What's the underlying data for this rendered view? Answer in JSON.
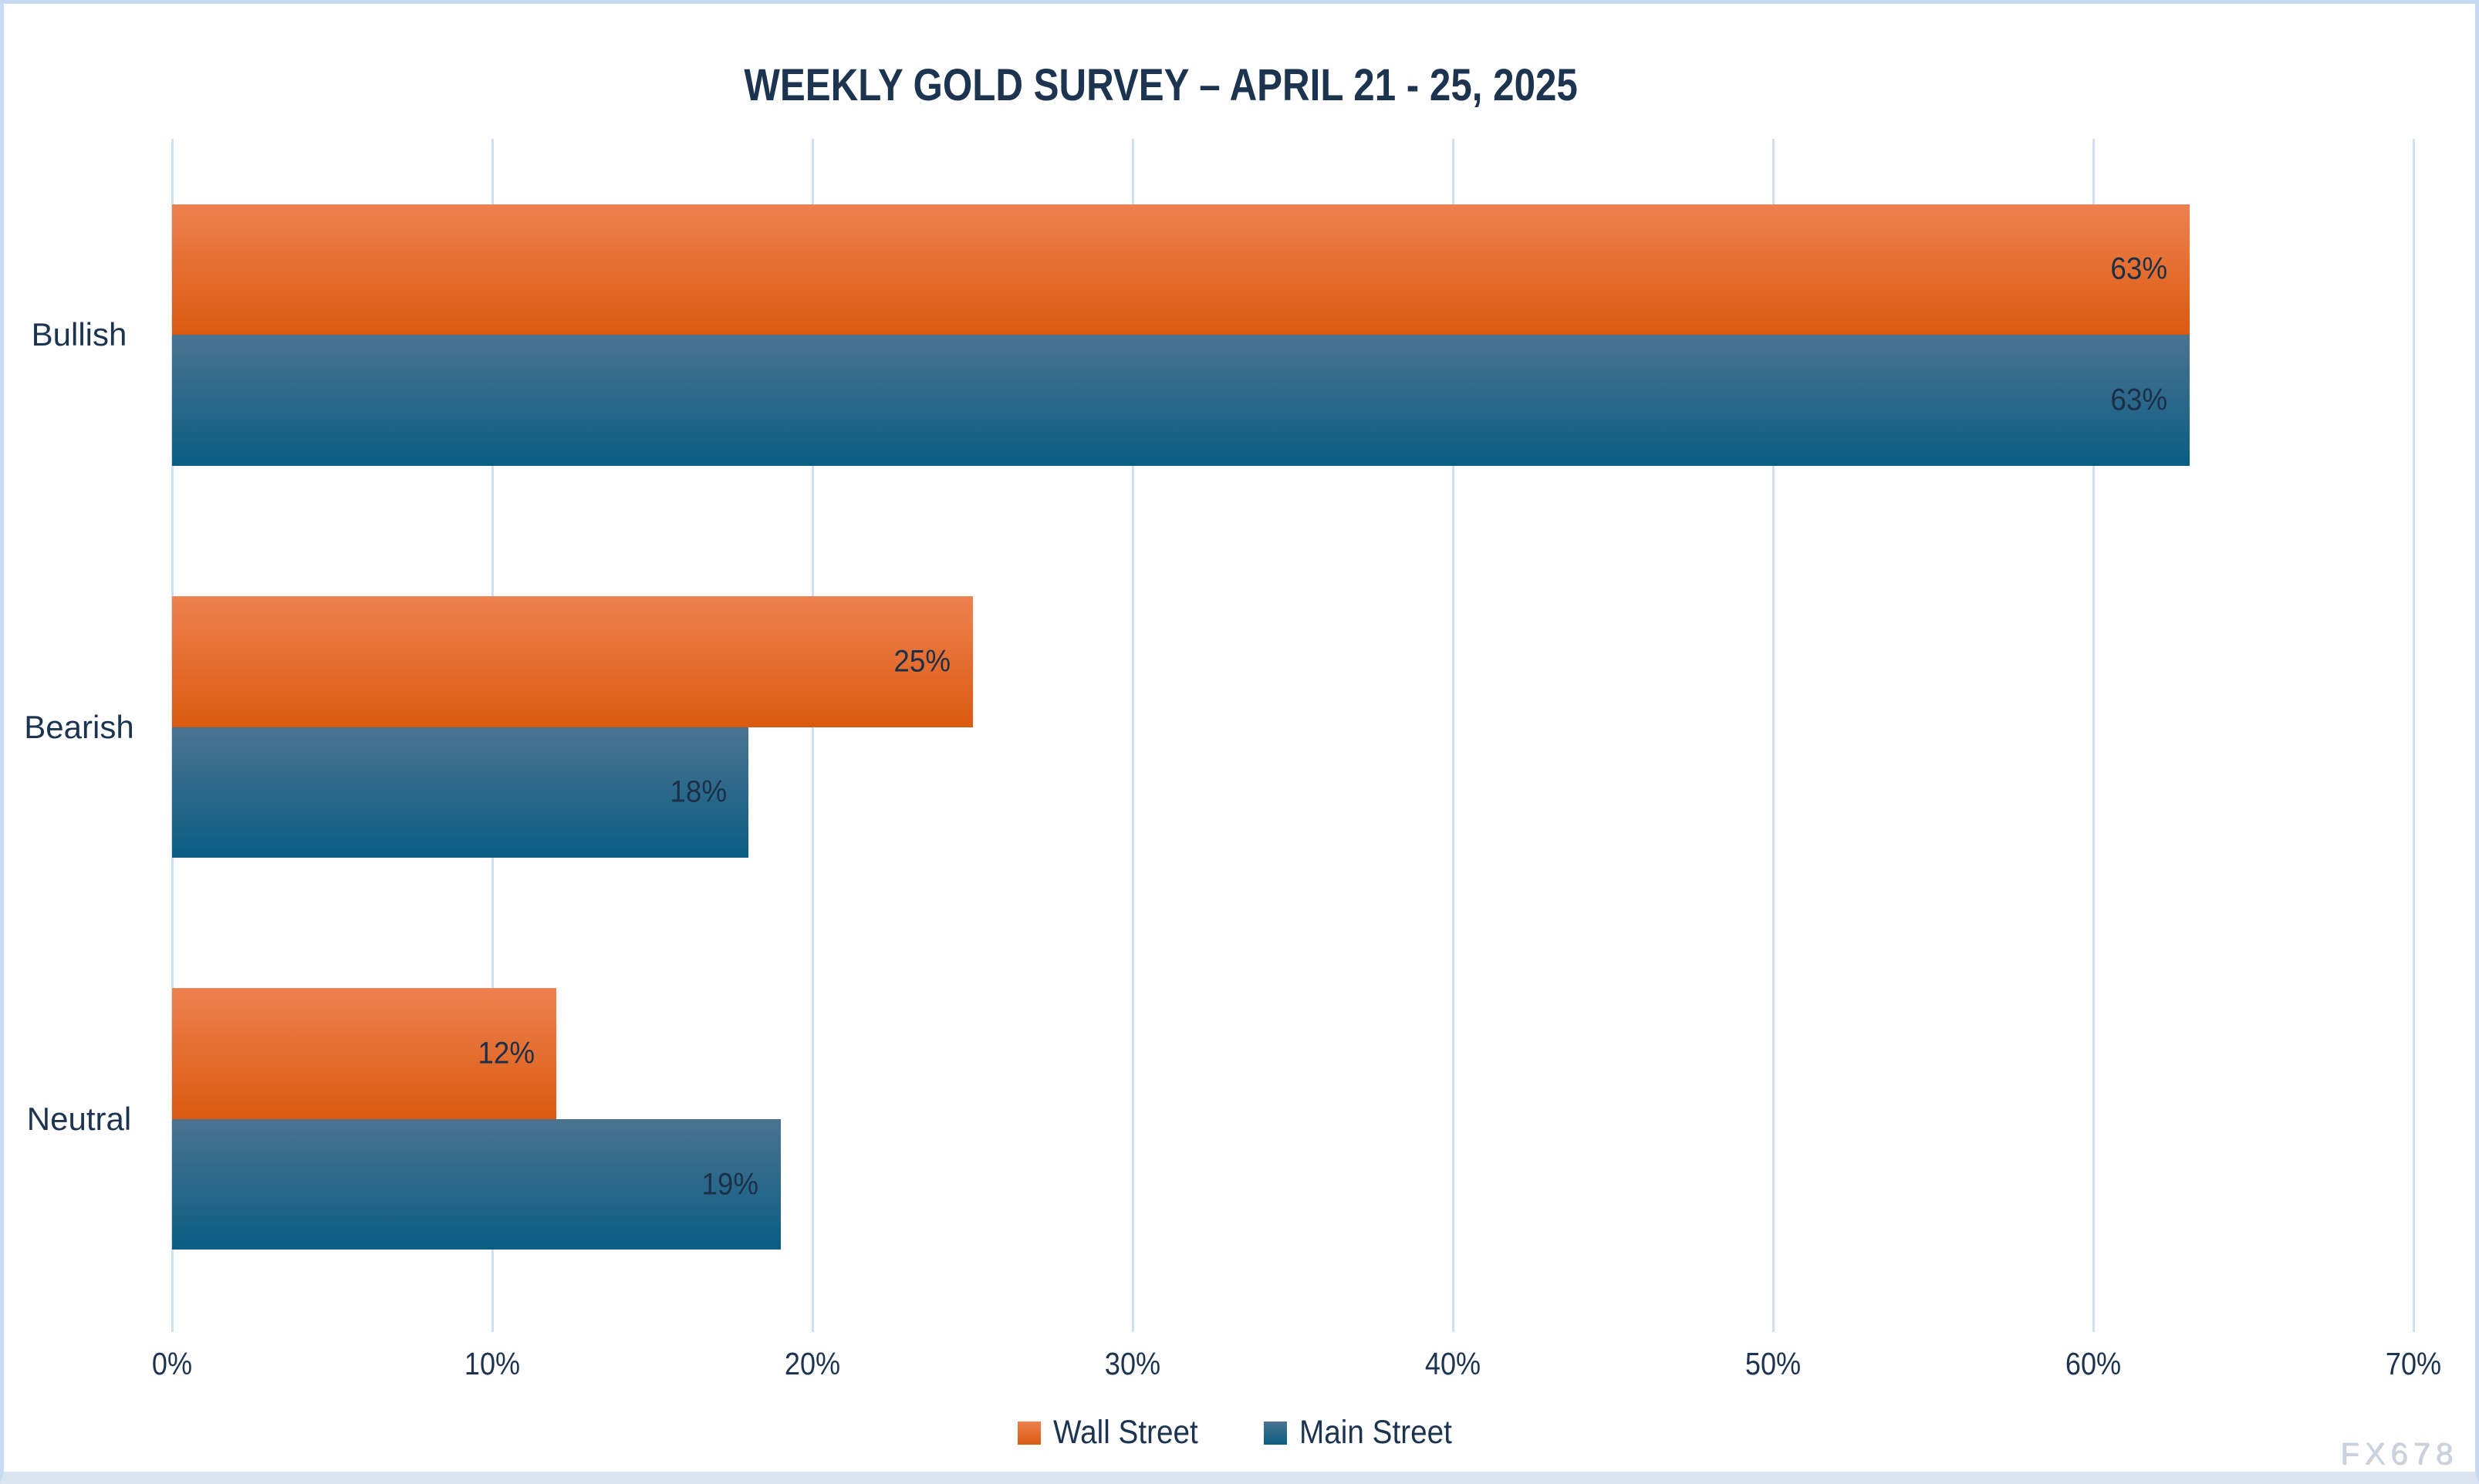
{
  "chart_data": {
    "type": "bar",
    "orientation": "horizontal",
    "title": "WEEKLY GOLD SURVEY – APRIL 21 - 25, 2025",
    "categories": [
      "Bullish",
      "Bearish",
      "Neutral"
    ],
    "series": [
      {
        "name": "Wall Street",
        "values": [
          63,
          25,
          12
        ],
        "labels": [
          "63%",
          "25%",
          "12%"
        ],
        "color_top": "#ee8150",
        "color_bottom": "#db5a10"
      },
      {
        "name": "Main Street",
        "values": [
          63,
          18,
          19
        ],
        "labels": [
          "63%",
          "18%",
          "19%"
        ],
        "color_top": "#4b7391",
        "color_bottom": "#0a5d83"
      }
    ],
    "x_ticks": [
      "0%",
      "10%",
      "20%",
      "30%",
      "40%",
      "50%",
      "60%",
      "70%"
    ],
    "xlim": [
      0,
      70
    ],
    "grid": true,
    "gridline_color": "#cfe0f1",
    "legend_position": "bottom",
    "value_label_color": "#1b3048",
    "text_color": "#1d3450"
  },
  "watermark": "FX678"
}
